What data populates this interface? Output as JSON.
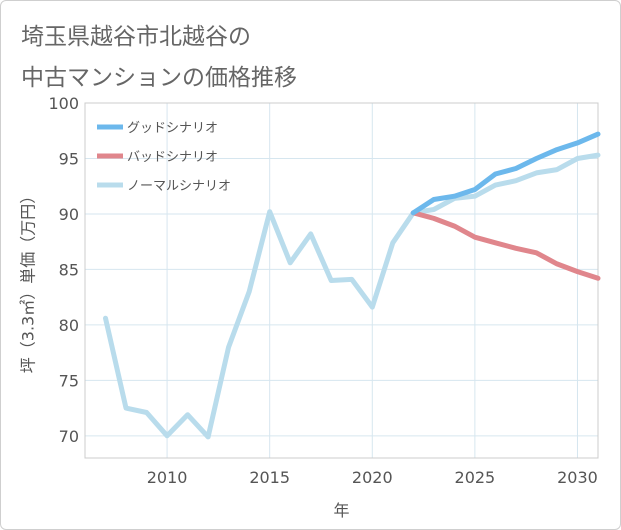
{
  "title": {
    "line1": "埼玉県越谷市北越谷の",
    "line2": "中古マンションの価格推移"
  },
  "chart_data": {
    "type": "line",
    "title": "埼玉県越谷市北越谷の中古マンションの価格推移",
    "xlabel": "年",
    "ylabel": "坪（3.3㎡）単価（万円）",
    "xlim": [
      2006,
      2031
    ],
    "ylim": [
      68,
      100
    ],
    "x_ticks": [
      "2010",
      "2015",
      "2020",
      "2025",
      "2030"
    ],
    "y_ticks": [
      "70",
      "75",
      "80",
      "85",
      "90",
      "95",
      "100"
    ],
    "grid": true,
    "legend_position": "top-left",
    "series": [
      {
        "name": "グッドシナリオ",
        "color": "#6cb8ec",
        "x": [
          2022,
          2023,
          2024,
          2025,
          2026,
          2027,
          2028,
          2029,
          2030,
          2031
        ],
        "y": [
          90.1,
          91.3,
          91.6,
          92.2,
          93.6,
          94.1,
          95.0,
          95.8,
          96.4,
          97.2
        ]
      },
      {
        "name": "バッドシナリオ",
        "color": "#e0868c",
        "x": [
          2022,
          2023,
          2024,
          2025,
          2026,
          2027,
          2028,
          2029,
          2030,
          2031
        ],
        "y": [
          90.1,
          89.6,
          88.9,
          87.9,
          87.4,
          86.9,
          86.5,
          85.5,
          84.8,
          84.2
        ]
      },
      {
        "name": "ノーマルシナリオ",
        "color": "#b9dcec",
        "x": [
          2007,
          2008,
          2009,
          2010,
          2011,
          2012,
          2013,
          2014,
          2015,
          2016,
          2017,
          2018,
          2019,
          2020,
          2021,
          2022,
          2023,
          2024,
          2025,
          2026,
          2027,
          2028,
          2029,
          2030,
          2031
        ],
        "y": [
          80.6,
          72.5,
          72.1,
          70.0,
          71.9,
          69.9,
          78.0,
          83.0,
          90.2,
          85.6,
          88.2,
          84.0,
          84.1,
          81.6,
          87.4,
          90.1,
          90.4,
          91.4,
          91.6,
          92.6,
          93.0,
          93.7,
          94.0,
          95.0,
          95.3
        ]
      }
    ]
  }
}
